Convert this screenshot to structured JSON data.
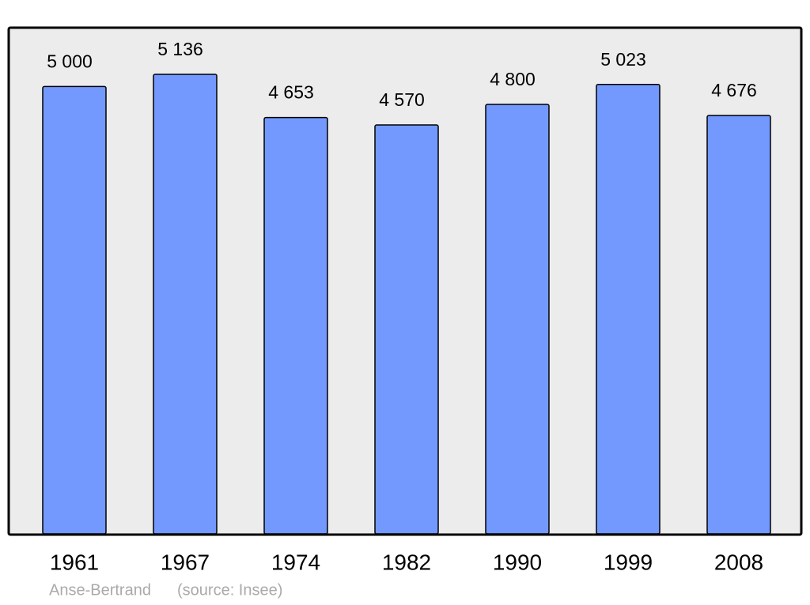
{
  "chart_data": {
    "type": "bar",
    "categories": [
      "1961",
      "1967",
      "1974",
      "1982",
      "1990",
      "1999",
      "2008"
    ],
    "values": [
      5000,
      5136,
      4653,
      4570,
      4800,
      5023,
      4676
    ],
    "value_labels": [
      "5 000",
      "5 136",
      "4 653",
      "4 570",
      "4 800",
      "5 023",
      "4 676"
    ],
    "color": "#7399ff",
    "place": "Anse-Bertrand",
    "source": "(source: Insee)"
  }
}
